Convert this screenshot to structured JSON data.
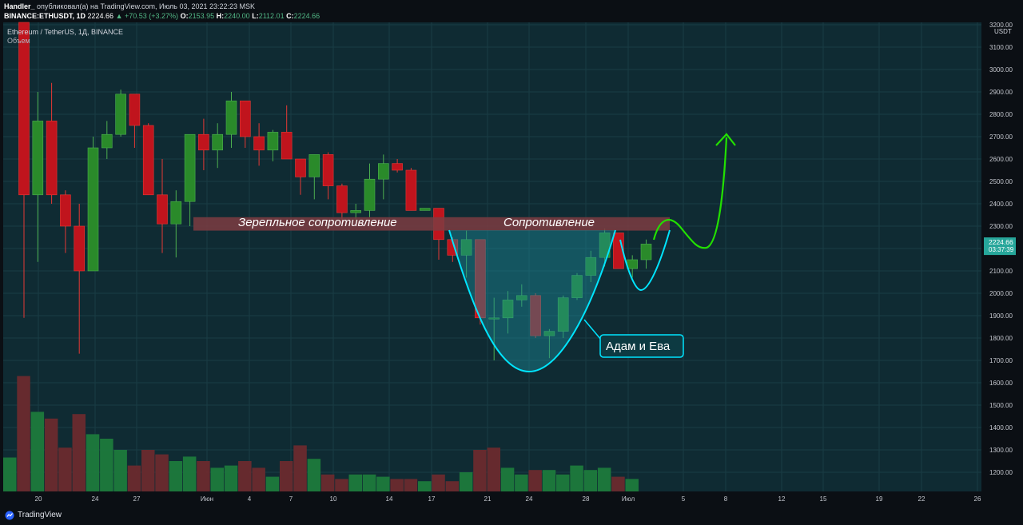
{
  "header": {
    "author": "Handler_",
    "publish_text": "опубликовал(а) на TradingView.com, Июль 03, 2021 23:22:23 MSK",
    "symbol": "BINANCE:ETHUSDT, 1D",
    "last": "2224.66",
    "change": "▲ +70.53 (+3.27%)",
    "o_label": "O:",
    "o": "2153.95",
    "h_label": "H:",
    "h": "2240.00",
    "l_label": "L:",
    "l": "2112.01",
    "c_label": "C:",
    "c": "2224.66"
  },
  "chart_data": {
    "type": "candlestick",
    "title": "Ethereum / TetherUS, 1Д, BINANCE",
    "subtitle": "Объем",
    "currency": "USDT",
    "y_range": [
      1100,
      3200
    ],
    "y_ticks": [
      1200,
      1300,
      1400,
      1500,
      1600,
      1700,
      1800,
      1900,
      2000,
      2100,
      2200,
      2300,
      2400,
      2500,
      2600,
      2700,
      2800,
      2900,
      3000,
      3100,
      3200
    ],
    "x_ticks": [
      "20",
      "24",
      "27",
      "Июн",
      "4",
      "7",
      "10",
      "14",
      "17",
      "21",
      "24",
      "28",
      "Июл",
      "5",
      "8",
      "12",
      "15",
      "19",
      "22",
      "26"
    ],
    "current_price": "2224.66",
    "countdown": "03:37:39",
    "colors": {
      "up": "#2a8a2a",
      "down": "#c0141d",
      "vol_up": "#1e7a3c",
      "vol_down": "#6b2a2e",
      "resistance": "#7d3c42",
      "shape": "#00e5ff",
      "arrow": "#22e000",
      "background": "#0f2b33",
      "grid": "#1a3c45"
    },
    "candles": [
      {
        "o": 3290,
        "h": 3300,
        "l": 1890,
        "c": 2440
      },
      {
        "o": 2440,
        "h": 2900,
        "l": 2140,
        "c": 2770
      },
      {
        "o": 2770,
        "h": 2940,
        "l": 2400,
        "c": 2440
      },
      {
        "o": 2440,
        "h": 2460,
        "l": 2180,
        "c": 2300
      },
      {
        "o": 2300,
        "h": 2400,
        "l": 1730,
        "c": 2100
      },
      {
        "o": 2100,
        "h": 2700,
        "l": 2100,
        "c": 2650
      },
      {
        "o": 2650,
        "h": 2770,
        "l": 2600,
        "c": 2710
      },
      {
        "o": 2710,
        "h": 2910,
        "l": 2700,
        "c": 2890
      },
      {
        "o": 2890,
        "h": 2890,
        "l": 2650,
        "c": 2750
      },
      {
        "o": 2750,
        "h": 2760,
        "l": 2450,
        "c": 2440
      },
      {
        "o": 2440,
        "h": 2600,
        "l": 2180,
        "c": 2310
      },
      {
        "o": 2310,
        "h": 2460,
        "l": 2160,
        "c": 2410
      },
      {
        "o": 2410,
        "h": 2710,
        "l": 2300,
        "c": 2710
      },
      {
        "o": 2710,
        "h": 2780,
        "l": 2550,
        "c": 2640
      },
      {
        "o": 2640,
        "h": 2760,
        "l": 2560,
        "c": 2710
      },
      {
        "o": 2710,
        "h": 2900,
        "l": 2650,
        "c": 2860
      },
      {
        "o": 2860,
        "h": 2860,
        "l": 2650,
        "c": 2700
      },
      {
        "o": 2700,
        "h": 2760,
        "l": 2570,
        "c": 2640
      },
      {
        "o": 2640,
        "h": 2730,
        "l": 2590,
        "c": 2720
      },
      {
        "o": 2720,
        "h": 2840,
        "l": 2600,
        "c": 2600
      },
      {
        "o": 2600,
        "h": 2600,
        "l": 2440,
        "c": 2520
      },
      {
        "o": 2520,
        "h": 2620,
        "l": 2420,
        "c": 2620
      },
      {
        "o": 2620,
        "h": 2630,
        "l": 2420,
        "c": 2480
      },
      {
        "o": 2480,
        "h": 2490,
        "l": 2310,
        "c": 2360
      },
      {
        "o": 2360,
        "h": 2400,
        "l": 2320,
        "c": 2370
      },
      {
        "o": 2370,
        "h": 2580,
        "l": 2340,
        "c": 2510
      },
      {
        "o": 2510,
        "h": 2620,
        "l": 2420,
        "c": 2580
      },
      {
        "o": 2580,
        "h": 2600,
        "l": 2540,
        "c": 2550
      },
      {
        "o": 2550,
        "h": 2560,
        "l": 2370,
        "c": 2370
      },
      {
        "o": 2370,
        "h": 2380,
        "l": 2370,
        "c": 2380
      },
      {
        "o": 2380,
        "h": 2380,
        "l": 2150,
        "c": 2240
      },
      {
        "o": 2240,
        "h": 2250,
        "l": 2140,
        "c": 2170
      },
      {
        "o": 2170,
        "h": 2280,
        "l": 2070,
        "c": 2240
      },
      {
        "o": 2240,
        "h": 2240,
        "l": 1860,
        "c": 1890
      },
      {
        "o": 1890,
        "h": 1980,
        "l": 1700,
        "c": 1890
      },
      {
        "o": 1890,
        "h": 2010,
        "l": 1820,
        "c": 1970
      },
      {
        "o": 1970,
        "h": 2040,
        "l": 1940,
        "c": 1990
      },
      {
        "o": 1990,
        "h": 2000,
        "l": 1800,
        "c": 1810
      },
      {
        "o": 1810,
        "h": 1840,
        "l": 1710,
        "c": 1830
      },
      {
        "o": 1830,
        "h": 1990,
        "l": 1800,
        "c": 1980
      },
      {
        "o": 1980,
        "h": 2090,
        "l": 1970,
        "c": 2080
      },
      {
        "o": 2080,
        "h": 2190,
        "l": 2050,
        "c": 2160
      },
      {
        "o": 2160,
        "h": 2290,
        "l": 2120,
        "c": 2270
      },
      {
        "o": 2270,
        "h": 2270,
        "l": 2110,
        "c": 2110
      },
      {
        "o": 2110,
        "h": 2170,
        "l": 2070,
        "c": 2150
      },
      {
        "o": 2150,
        "h": 2240,
        "l": 2110,
        "c": 2220
      }
    ],
    "volume": [
      {
        "v": 1266,
        "up": true
      },
      {
        "v": 1630,
        "up": false
      },
      {
        "v": 1470,
        "up": true
      },
      {
        "v": 1440,
        "up": false
      },
      {
        "v": 1310,
        "up": false
      },
      {
        "v": 1460,
        "up": false
      },
      {
        "v": 1370,
        "up": true
      },
      {
        "v": 1350,
        "up": true
      },
      {
        "v": 1300,
        "up": true
      },
      {
        "v": 1230,
        "up": false
      },
      {
        "v": 1300,
        "up": false
      },
      {
        "v": 1280,
        "up": false
      },
      {
        "v": 1250,
        "up": true
      },
      {
        "v": 1270,
        "up": true
      },
      {
        "v": 1250,
        "up": false
      },
      {
        "v": 1220,
        "up": true
      },
      {
        "v": 1230,
        "up": true
      },
      {
        "v": 1250,
        "up": false
      },
      {
        "v": 1220,
        "up": false
      },
      {
        "v": 1180,
        "up": true
      },
      {
        "v": 1250,
        "up": false
      },
      {
        "v": 1320,
        "up": false
      },
      {
        "v": 1260,
        "up": true
      },
      {
        "v": 1190,
        "up": false
      },
      {
        "v": 1170,
        "up": false
      },
      {
        "v": 1190,
        "up": true
      },
      {
        "v": 1190,
        "up": true
      },
      {
        "v": 1180,
        "up": true
      },
      {
        "v": 1170,
        "up": false
      },
      {
        "v": 1170,
        "up": false
      },
      {
        "v": 1160,
        "up": true
      },
      {
        "v": 1190,
        "up": false
      },
      {
        "v": 1160,
        "up": false
      },
      {
        "v": 1200,
        "up": true
      },
      {
        "v": 1300,
        "up": false
      },
      {
        "v": 1310,
        "up": false
      },
      {
        "v": 1220,
        "up": true
      },
      {
        "v": 1190,
        "up": true
      },
      {
        "v": 1210,
        "up": false
      },
      {
        "v": 1210,
        "up": true
      },
      {
        "v": 1190,
        "up": true
      },
      {
        "v": 1230,
        "up": true
      },
      {
        "v": 1210,
        "up": true
      },
      {
        "v": 1220,
        "up": true
      },
      {
        "v": 1180,
        "up": false
      },
      {
        "v": 1170,
        "up": true
      }
    ],
    "annotations": {
      "resistance_low": 2280,
      "resistance_high": 2340,
      "mirror_label": "Зерепльное сопротивление",
      "resistance_label": "Сопротивление",
      "pattern_label": "Адам и Ева"
    }
  },
  "footer": {
    "brand": "TradingView"
  }
}
